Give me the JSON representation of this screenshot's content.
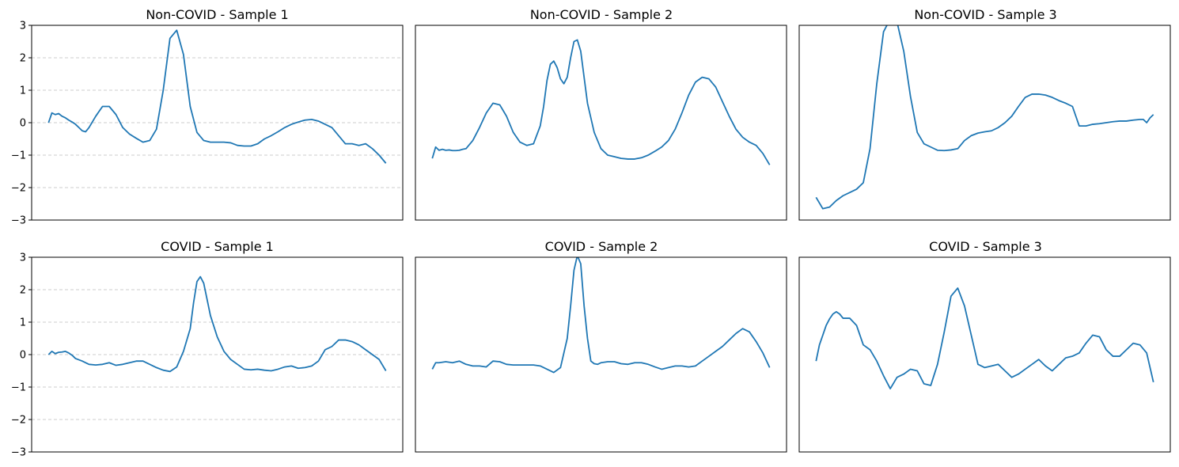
{
  "figure": {
    "line_color": "#1f77b4",
    "grid_color": "#cccccc"
  },
  "chart_data": [
    {
      "type": "line",
      "title": "Non-COVID - Sample 1",
      "ylim": [
        -3,
        3
      ],
      "yticks": [
        -3,
        -2,
        -1,
        0,
        1,
        2,
        3
      ],
      "ytick_labels": [
        "−3",
        "−2",
        "−1",
        "0",
        "1",
        "2",
        "3"
      ],
      "grid": true,
      "x_axis": "hidden",
      "series": [
        {
          "x": [
            0,
            1,
            2,
            3,
            4,
            5,
            6,
            7,
            8,
            9,
            10,
            11,
            12,
            14,
            16,
            18,
            20,
            22,
            24,
            26,
            28,
            30,
            32,
            34,
            36,
            38,
            40,
            42,
            44,
            46,
            48,
            50,
            52,
            54,
            56,
            58,
            60,
            62,
            64,
            66,
            68,
            70,
            72,
            74,
            76,
            78,
            80,
            82,
            84,
            86,
            88,
            90,
            92,
            94,
            96,
            98,
            100
          ],
          "y": [
            0.0,
            0.3,
            0.25,
            0.28,
            0.2,
            0.15,
            0.08,
            0.02,
            -0.05,
            -0.15,
            -0.25,
            -0.28,
            -0.15,
            0.2,
            0.5,
            0.5,
            0.25,
            -0.15,
            -0.35,
            -0.48,
            -0.6,
            -0.55,
            -0.2,
            1.0,
            2.6,
            2.85,
            2.1,
            0.5,
            -0.3,
            -0.55,
            -0.6,
            -0.6,
            -0.6,
            -0.62,
            -0.7,
            -0.72,
            -0.72,
            -0.65,
            -0.5,
            -0.4,
            -0.28,
            -0.15,
            -0.05,
            0.02,
            0.08,
            0.1,
            0.05,
            -0.05,
            -0.15,
            -0.4,
            -0.65,
            -0.65,
            -0.7,
            -0.65,
            -0.8,
            -1.0,
            -1.25
          ]
        }
      ]
    },
    {
      "type": "line",
      "title": "Non-COVID - Sample 2",
      "ylim": [
        -3,
        3
      ],
      "grid": false,
      "x_axis": "hidden",
      "series": [
        {
          "x": [
            0,
            1,
            2,
            3,
            4,
            5,
            6,
            7,
            8,
            9,
            10,
            12,
            14,
            16,
            18,
            20,
            22,
            24,
            26,
            28,
            30,
            32,
            33,
            34,
            35,
            36,
            37,
            38,
            39,
            40,
            41,
            42,
            43,
            44,
            45,
            46,
            48,
            50,
            52,
            54,
            56,
            58,
            60,
            62,
            64,
            66,
            68,
            70,
            72,
            74,
            76,
            78,
            80,
            82,
            84,
            86,
            88,
            90,
            92,
            94,
            96,
            98,
            100
          ],
          "y": [
            -1.1,
            -0.75,
            -0.85,
            -0.82,
            -0.85,
            -0.84,
            -0.86,
            -0.86,
            -0.85,
            -0.82,
            -0.8,
            -0.55,
            -0.15,
            0.3,
            0.6,
            0.55,
            0.2,
            -0.3,
            -0.6,
            -0.7,
            -0.65,
            -0.1,
            0.5,
            1.3,
            1.8,
            1.9,
            1.7,
            1.35,
            1.2,
            1.4,
            2.0,
            2.5,
            2.55,
            2.2,
            1.4,
            0.6,
            -0.3,
            -0.8,
            -1.0,
            -1.05,
            -1.1,
            -1.12,
            -1.12,
            -1.08,
            -1.0,
            -0.88,
            -0.75,
            -0.55,
            -0.2,
            0.3,
            0.85,
            1.25,
            1.4,
            1.35,
            1.1,
            0.65,
            0.2,
            -0.2,
            -0.45,
            -0.6,
            -0.7,
            -0.95,
            -1.3
          ]
        }
      ]
    },
    {
      "type": "line",
      "title": "Non-COVID - Sample 3",
      "ylim": [
        -3,
        3
      ],
      "grid": false,
      "x_axis": "hidden",
      "series": [
        {
          "x": [
            0,
            2,
            4,
            6,
            8,
            10,
            12,
            14,
            16,
            18,
            20,
            22,
            24,
            26,
            28,
            30,
            32,
            34,
            36,
            38,
            40,
            42,
            44,
            46,
            48,
            50,
            52,
            54,
            56,
            58,
            60,
            62,
            64,
            66,
            68,
            70,
            72,
            74,
            76,
            78,
            80,
            82,
            84,
            86,
            88,
            90,
            92,
            94,
            96,
            97,
            98,
            99,
            100
          ],
          "y": [
            -2.3,
            -2.65,
            -2.6,
            -2.4,
            -2.25,
            -2.15,
            -2.05,
            -1.85,
            -0.8,
            1.2,
            2.8,
            3.2,
            3.1,
            2.2,
            0.8,
            -0.3,
            -0.65,
            -0.75,
            -0.85,
            -0.86,
            -0.84,
            -0.8,
            -0.55,
            -0.4,
            -0.32,
            -0.28,
            -0.25,
            -0.15,
            0.0,
            0.2,
            0.5,
            0.78,
            0.88,
            0.88,
            0.85,
            0.78,
            0.68,
            0.6,
            0.5,
            -0.1,
            -0.1,
            -0.05,
            -0.03,
            0.0,
            0.03,
            0.05,
            0.05,
            0.08,
            0.1,
            0.1,
            0.0,
            0.15,
            0.25
          ]
        }
      ]
    },
    {
      "type": "line",
      "title": "COVID - Sample 1",
      "ylim": [
        -3,
        3
      ],
      "yticks": [
        -3,
        -2,
        -1,
        0,
        1,
        2,
        3
      ],
      "ytick_labels": [
        "−3",
        "−2",
        "−1",
        "0",
        "1",
        "2",
        "3"
      ],
      "grid": true,
      "x_axis": "hidden",
      "series": [
        {
          "x": [
            0,
            1,
            2,
            3,
            4,
            5,
            6,
            7,
            8,
            10,
            12,
            14,
            16,
            18,
            20,
            22,
            24,
            26,
            28,
            30,
            32,
            34,
            36,
            38,
            40,
            42,
            43,
            44,
            45,
            46,
            47,
            48,
            50,
            52,
            54,
            56,
            58,
            60,
            62,
            64,
            66,
            68,
            70,
            72,
            74,
            76,
            78,
            80,
            82,
            84,
            86,
            88,
            90,
            92,
            94,
            96,
            98,
            100
          ],
          "y": [
            0.0,
            0.1,
            0.03,
            0.07,
            0.08,
            0.1,
            0.05,
            -0.02,
            -0.12,
            -0.2,
            -0.3,
            -0.32,
            -0.3,
            -0.25,
            -0.33,
            -0.3,
            -0.25,
            -0.2,
            -0.2,
            -0.3,
            -0.4,
            -0.48,
            -0.52,
            -0.38,
            0.1,
            0.8,
            1.6,
            2.25,
            2.4,
            2.2,
            1.7,
            1.2,
            0.55,
            0.1,
            -0.15,
            -0.3,
            -0.45,
            -0.47,
            -0.45,
            -0.48,
            -0.5,
            -0.45,
            -0.38,
            -0.35,
            -0.42,
            -0.4,
            -0.35,
            -0.2,
            0.15,
            0.25,
            0.45,
            0.45,
            0.4,
            0.3,
            0.15,
            0.0,
            -0.15,
            -0.5
          ]
        }
      ]
    },
    {
      "type": "line",
      "title": "COVID - Sample 2",
      "ylim": [
        -3,
        3
      ],
      "grid": false,
      "x_axis": "hidden",
      "series": [
        {
          "x": [
            0,
            1,
            2,
            4,
            6,
            8,
            10,
            12,
            14,
            16,
            18,
            20,
            22,
            24,
            26,
            28,
            30,
            32,
            34,
            36,
            38,
            40,
            41,
            42,
            43,
            44,
            45,
            46,
            47,
            48,
            49,
            50,
            52,
            54,
            56,
            58,
            60,
            62,
            64,
            66,
            68,
            70,
            72,
            74,
            76,
            78,
            80,
            82,
            84,
            86,
            88,
            90,
            92,
            94,
            96,
            98,
            100
          ],
          "y": [
            -0.45,
            -0.25,
            -0.25,
            -0.22,
            -0.25,
            -0.2,
            -0.3,
            -0.35,
            -0.35,
            -0.38,
            -0.2,
            -0.22,
            -0.3,
            -0.32,
            -0.32,
            -0.32,
            -0.32,
            -0.35,
            -0.45,
            -0.55,
            -0.4,
            0.5,
            1.5,
            2.6,
            3.05,
            2.8,
            1.5,
            0.5,
            -0.2,
            -0.28,
            -0.3,
            -0.25,
            -0.22,
            -0.22,
            -0.28,
            -0.3,
            -0.25,
            -0.25,
            -0.3,
            -0.38,
            -0.45,
            -0.4,
            -0.35,
            -0.35,
            -0.38,
            -0.35,
            -0.2,
            -0.05,
            0.1,
            0.25,
            0.45,
            0.65,
            0.8,
            0.7,
            0.4,
            0.05,
            -0.4
          ]
        }
      ]
    },
    {
      "type": "line",
      "title": "COVID - Sample 3",
      "ylim": [
        -3,
        3
      ],
      "grid": false,
      "x_axis": "hidden",
      "series": [
        {
          "x": [
            0,
            1,
            2,
            3,
            4,
            5,
            6,
            7,
            8,
            10,
            12,
            14,
            16,
            18,
            20,
            22,
            24,
            26,
            28,
            30,
            32,
            34,
            36,
            38,
            40,
            42,
            44,
            46,
            48,
            50,
            52,
            54,
            56,
            58,
            60,
            62,
            64,
            66,
            68,
            70,
            72,
            74,
            76,
            78,
            80,
            82,
            84,
            86,
            88,
            90,
            92,
            94,
            96,
            98,
            100
          ],
          "y": [
            -0.2,
            0.3,
            0.6,
            0.9,
            1.1,
            1.25,
            1.32,
            1.25,
            1.12,
            1.12,
            0.9,
            0.3,
            0.15,
            -0.2,
            -0.65,
            -1.05,
            -0.7,
            -0.6,
            -0.45,
            -0.5,
            -0.9,
            -0.95,
            -0.3,
            0.7,
            1.8,
            2.05,
            1.5,
            0.6,
            -0.3,
            -0.4,
            -0.35,
            -0.3,
            -0.5,
            -0.7,
            -0.6,
            -0.45,
            -0.3,
            -0.15,
            -0.35,
            -0.5,
            -0.3,
            -0.1,
            -0.05,
            0.05,
            0.35,
            0.6,
            0.55,
            0.15,
            -0.05,
            -0.05,
            0.15,
            0.35,
            0.3,
            0.05,
            -0.85
          ]
        }
      ]
    }
  ]
}
